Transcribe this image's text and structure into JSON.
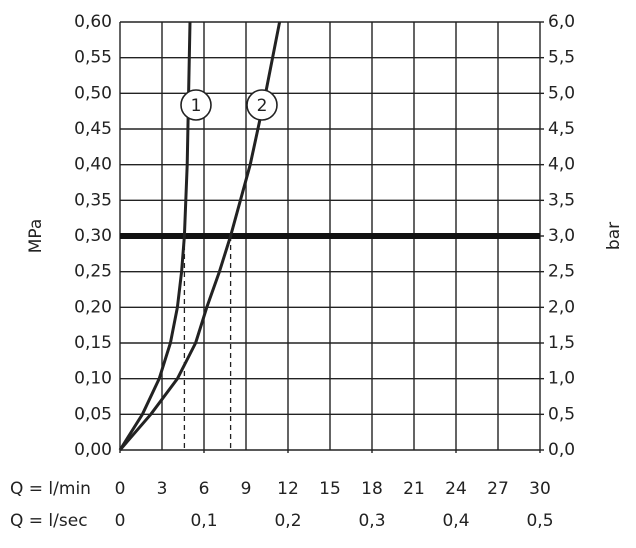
{
  "chart_data": {
    "type": "line",
    "x_label": "Q = l/min",
    "x2_label": "Q = l/sec",
    "y_label": "MPa",
    "y2_label": "bar",
    "xlim": [
      0,
      30
    ],
    "xticks": [
      0,
      3,
      6,
      9,
      12,
      15,
      18,
      21,
      24,
      27,
      30
    ],
    "x2lim": [
      0,
      0.5
    ],
    "x2ticks": [
      0,
      {
        "value": 0.1,
        "label": "0,1"
      },
      {
        "value": 0.2,
        "label": "0,2"
      },
      {
        "value": 0.3,
        "label": "0,3"
      },
      {
        "value": 0.4,
        "label": "0,4"
      },
      {
        "value": 0.5,
        "label": "0,5"
      }
    ],
    "ylim": [
      0,
      0.6
    ],
    "yticks": [
      {
        "value": 0,
        "label": "0,00"
      },
      {
        "value": 0.05,
        "label": "0,05"
      },
      {
        "value": 0.1,
        "label": "0,10"
      },
      {
        "value": 0.15,
        "label": "0,15"
      },
      {
        "value": 0.2,
        "label": "0,20"
      },
      {
        "value": 0.25,
        "label": "0,25"
      },
      {
        "value": 0.3,
        "label": "0,30"
      },
      {
        "value": 0.35,
        "label": "0,35"
      },
      {
        "value": 0.4,
        "label": "0,40"
      },
      {
        "value": 0.45,
        "label": "0,45"
      },
      {
        "value": 0.5,
        "label": "0,50"
      },
      {
        "value": 0.55,
        "label": "0,55"
      },
      {
        "value": 0.6,
        "label": "0,60"
      }
    ],
    "y2lim": [
      0,
      6
    ],
    "y2ticks": [
      {
        "value": 0,
        "label": "0,0"
      },
      {
        "value": 0.5,
        "label": "0,5"
      },
      {
        "value": 1,
        "label": "1,0"
      },
      {
        "value": 1.5,
        "label": "1,5"
      },
      {
        "value": 2,
        "label": "2,0"
      },
      {
        "value": 2.5,
        "label": "2,5"
      },
      {
        "value": 3,
        "label": "3,0"
      },
      {
        "value": 3.5,
        "label": "3,5"
      },
      {
        "value": 4,
        "label": "4,0"
      },
      {
        "value": 4.5,
        "label": "4,5"
      },
      {
        "value": 5,
        "label": "5,0"
      },
      {
        "value": 5.5,
        "label": "5,5"
      },
      {
        "value": 6,
        "label": "6,0"
      }
    ],
    "grid": true,
    "reference_line": 0.3,
    "series": [
      {
        "name": "1",
        "color": "#222222",
        "x": [
          0,
          1.6,
          2.8,
          3.6,
          4.1,
          4.4,
          4.6,
          4.8,
          4.9,
          5.0
        ],
        "values": [
          0,
          0.05,
          0.1,
          0.15,
          0.2,
          0.25,
          0.3,
          0.4,
          0.5,
          0.6
        ]
      },
      {
        "name": "2",
        "color": "#222222",
        "x": [
          0,
          2.2,
          4.1,
          5.4,
          6.2,
          7.1,
          7.9,
          9.3,
          10.4,
          11.4
        ],
        "values": [
          0,
          0.05,
          0.1,
          0.15,
          0.2,
          0.25,
          0.3,
          0.4,
          0.5,
          0.6
        ]
      }
    ]
  }
}
